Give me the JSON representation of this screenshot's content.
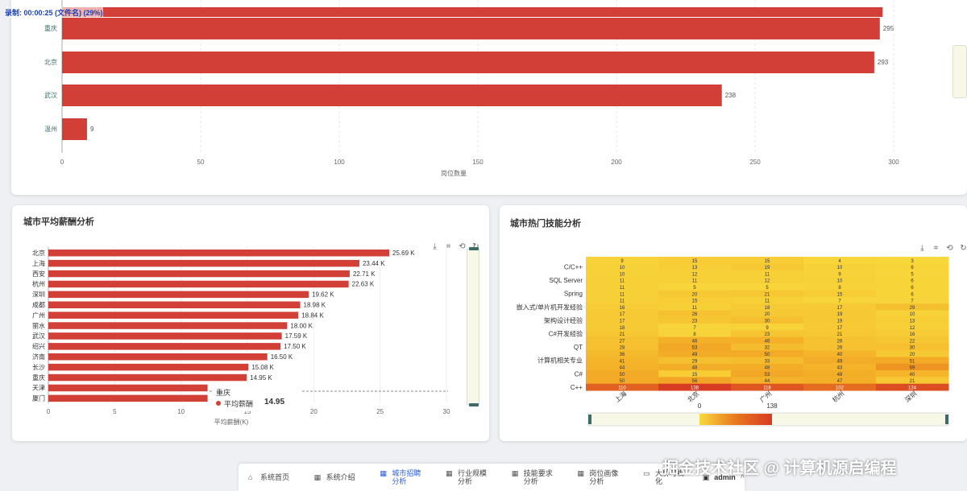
{
  "timer_text": "录制: 00:00:25 (文件名) (29%)",
  "watermark": "掘金技术社区 @ 计算机源启编程",
  "top_chart": {
    "chart_data": {
      "type": "bar",
      "orientation": "horizontal",
      "categories": [
        "重庆",
        "北京",
        "武汉",
        "温州"
      ],
      "values": [
        295,
        293,
        238,
        9
      ],
      "partial_top_bar_value": 296,
      "xlabel": "岗位数量",
      "xlim": [
        0,
        300
      ],
      "xticks": [
        "0",
        "50",
        "100",
        "150",
        "200",
        "250",
        "300"
      ],
      "bar_color": "#d23f37"
    },
    "bar_labels": [
      "295",
      "293",
      "238",
      "9"
    ]
  },
  "salary_card": {
    "title": "城市平均薪酬分析",
    "toolbar": [
      "download-icon",
      "crop-icon",
      "restore-icon",
      "refresh-icon"
    ],
    "chart_data": {
      "type": "bar",
      "orientation": "horizontal",
      "categories": [
        "北京",
        "上海",
        "西安",
        "杭州",
        "深圳",
        "成都",
        "广州",
        "丽水",
        "武汉",
        "绍兴",
        "济南",
        "长沙",
        "重庆",
        "天津",
        "厦门"
      ],
      "values": [
        25.69,
        23.44,
        22.71,
        22.63,
        19.62,
        18.98,
        18.84,
        18.0,
        17.59,
        17.5,
        16.5,
        15.08,
        14.95,
        12,
        12
      ],
      "labels": [
        "25.69 K",
        "23.44 K",
        "22.71 K",
        "22.63 K",
        "19.62 K",
        "18.98 K",
        "18.84 K",
        "18.00 K",
        "17.59 K",
        "17.50 K",
        "16.50 K",
        "15.08 K",
        "14.95 K",
        "",
        ""
      ],
      "xlabel": "平均薪酬(K)",
      "xlim": [
        0,
        30
      ],
      "xticks": [
        "0",
        "5",
        "10",
        "15",
        "20",
        "25",
        "30"
      ],
      "bar_color": "#d23f37"
    },
    "tooltip": {
      "city": "重庆",
      "series_name": "平均薪酬",
      "value": "14.95"
    }
  },
  "skills_card": {
    "title": "城市热门技能分析",
    "toolbar": [
      "download-icon",
      "crop-icon",
      "restore-icon",
      "refresh-icon"
    ],
    "chart_data": {
      "type": "heatmap",
      "y_labels_shown": [
        "C/C++",
        "SQL Server",
        "Spring",
        "嵌入式/单片机开发经验",
        "架构设计经验",
        "C#开发经验",
        "QT",
        "计算机相关专业",
        "C#",
        "C++"
      ],
      "x_categories": [
        "上海",
        "北京",
        "广州",
        "杭州",
        "深圳"
      ],
      "rows": [
        [
          9,
          15,
          15,
          4,
          3
        ],
        [
          10,
          13,
          19,
          10,
          6
        ],
        [
          10,
          12,
          11,
          9,
          5
        ],
        [
          11,
          11,
          12,
          10,
          6
        ],
        [
          11,
          5,
          5,
          8,
          6
        ],
        [
          11,
          20,
          21,
          15,
          6
        ],
        [
          11,
          15,
          11,
          7,
          7
        ],
        [
          16,
          11,
          18,
          17,
          29
        ],
        [
          17,
          26,
          20,
          19,
          10
        ],
        [
          17,
          23,
          30,
          19,
          13
        ],
        [
          18,
          7,
          9,
          17,
          12
        ],
        [
          21,
          8,
          23,
          21,
          16
        ],
        [
          27,
          46,
          46,
          26,
          22
        ],
        [
          28,
          53,
          32,
          26,
          30
        ],
        [
          36,
          49,
          50,
          40,
          20
        ],
        [
          41,
          29,
          33,
          49,
          51
        ],
        [
          44,
          48,
          48,
          43,
          69
        ],
        [
          50,
          15,
          53,
          48,
          40
        ],
        [
          50,
          56,
          44,
          47,
          21
        ],
        [
          110,
          138,
          118,
          102,
          124
        ]
      ],
      "visual_map": {
        "min": "0",
        "max": "138"
      }
    }
  },
  "nav": {
    "items": [
      {
        "icon": "home-icon",
        "label": "系统首页",
        "active": false
      },
      {
        "icon": "grid-icon",
        "label": "系统介绍",
        "active": false
      },
      {
        "icon": "grid-icon",
        "label": "城市招聘分析",
        "active": true
      },
      {
        "icon": "grid-icon",
        "label": "行业规模分析",
        "active": false
      },
      {
        "icon": "grid-icon",
        "label": "技能要求分析",
        "active": false
      },
      {
        "icon": "grid-icon",
        "label": "岗位画像分析",
        "active": false
      },
      {
        "icon": "monitor-icon",
        "label": "大屏可视化",
        "active": false
      }
    ],
    "user": "admin"
  }
}
